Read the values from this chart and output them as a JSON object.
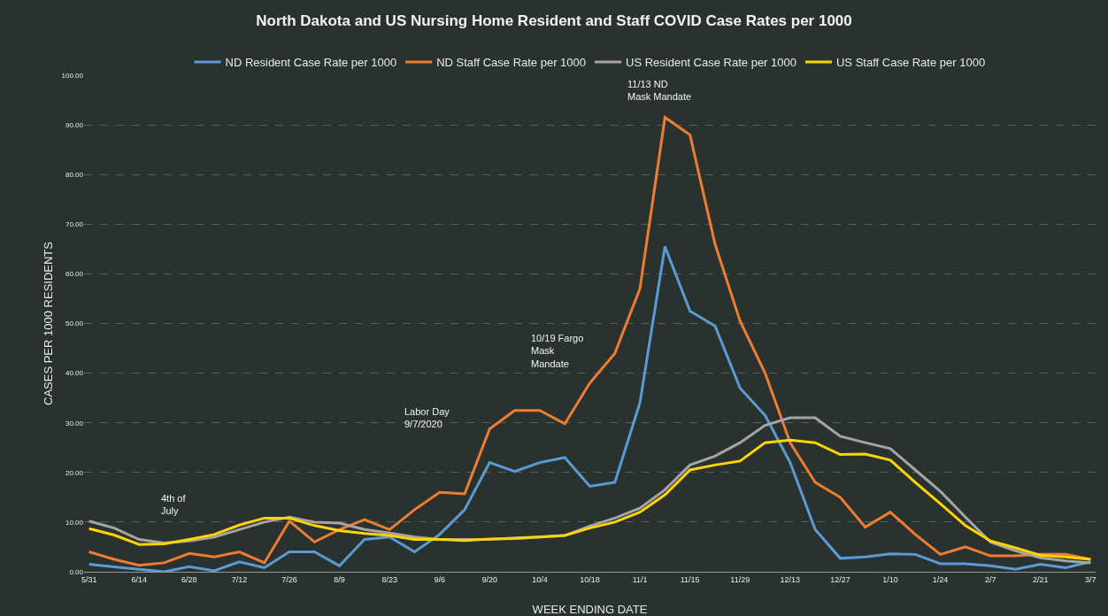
{
  "chart_data": {
    "type": "line",
    "title": "North Dakota and US Nursing Home Resident and Staff COVID Case Rates per 1000",
    "xlabel": "WEEK ENDING DATE",
    "ylabel": "CASES PER 1000 RESIDENTS",
    "categories": [
      "5/31",
      null,
      "6/14",
      null,
      "6/28",
      null,
      "7/12",
      null,
      "7/26",
      null,
      "8/9",
      null,
      "8/23",
      null,
      "9/6",
      null,
      "9/20",
      null,
      "10/4",
      null,
      "10/18",
      null,
      "11/1",
      null,
      "11/15",
      null,
      "11/29",
      null,
      "12/13",
      null,
      "12/27",
      null,
      "1/10",
      null,
      "1/24",
      null,
      "2/7",
      null,
      "2/21",
      null,
      "3/7"
    ],
    "series": [
      {
        "name": "ND Resident Case Rate per 1000",
        "color": "#5b9bd5",
        "values": [
          1.5,
          1.0,
          0.5,
          0,
          1.0,
          0.2,
          2,
          0.8,
          4,
          4,
          1.2,
          6.5,
          7,
          4,
          7.5,
          12.5,
          22,
          20.2,
          22,
          23,
          17.2,
          18,
          34,
          65.5,
          52.5,
          49.5,
          37,
          31.5,
          22,
          8.5,
          2.7,
          3,
          3.6,
          3.5,
          1.6,
          1.6,
          1.2,
          0.5,
          1.5,
          0.8,
          2
        ]
      },
      {
        "name": "ND Staff Case Rate per 1000",
        "color": "#ed7d31",
        "values": [
          4,
          2.5,
          1.3,
          1.8,
          3.7,
          3,
          4,
          1.8,
          10.2,
          6,
          8.5,
          10.5,
          8.5,
          12.5,
          16,
          15.7,
          28.8,
          32.5,
          32.5,
          29.8,
          38,
          44,
          57,
          91.5,
          88,
          66,
          50.5,
          40,
          26,
          18,
          15,
          9,
          12,
          7.5,
          3.5,
          5,
          3.2,
          3.2,
          3.5,
          3.5,
          2.5
        ]
      },
      {
        "name": "US Resident Case Rate per 1000",
        "color": "#a5a5a5",
        "values": [
          10.2,
          8.8,
          6.5,
          5.8,
          6.2,
          7,
          8.5,
          10,
          11,
          10,
          9.8,
          8.5,
          7.8,
          7,
          6.5,
          6.5,
          6.5,
          6.8,
          7,
          7.3,
          9.2,
          10.8,
          12.8,
          16.5,
          21.5,
          23.3,
          26,
          29.5,
          31,
          31,
          27.3,
          26,
          24.8,
          20.5,
          16.2,
          11,
          6,
          4.2,
          2.8,
          2.2,
          1.8
        ]
      },
      {
        "name": "US Staff Case Rate per 1000",
        "color": "#ffd400",
        "values": [
          8.7,
          7.4,
          5.5,
          5.6,
          6.5,
          7.5,
          9.4,
          10.8,
          10.8,
          9.3,
          8.3,
          7.7,
          7.3,
          6.5,
          6.5,
          6.3,
          6.6,
          6.7,
          7,
          7.3,
          8.8,
          10,
          12,
          15.5,
          20.5,
          21.5,
          22.3,
          26,
          26.5,
          26,
          23.6,
          23.7,
          22.5,
          18,
          13.7,
          9.3,
          6.2,
          4.8,
          3.3,
          3,
          2.5
        ]
      }
    ],
    "ylim": [
      0,
      100
    ],
    "yticks": [
      {
        "value": 0,
        "label": "0.00"
      },
      {
        "value": 10,
        "label": "10.00"
      },
      {
        "value": 20,
        "label": "20.00"
      },
      {
        "value": 30,
        "label": "30.00"
      },
      {
        "value": 40,
        "label": "40.00"
      },
      {
        "value": 50,
        "label": "50.00"
      },
      {
        "value": 60,
        "label": "60.00"
      },
      {
        "value": 70,
        "label": "70.00"
      },
      {
        "value": 80,
        "label": "80.00"
      },
      {
        "value": 90,
        "label": "90.00"
      },
      {
        "value": 100,
        "label": "100.00"
      }
    ],
    "grid": "y",
    "legend": "top",
    "marker": "none",
    "line_style": "solid",
    "annotations": [
      "4th of\nJuly",
      "Labor Day\n9/7/2020",
      "10/19 Fargo\nMask\nMandate",
      "11/13 ND\nMask Mandate"
    ]
  }
}
